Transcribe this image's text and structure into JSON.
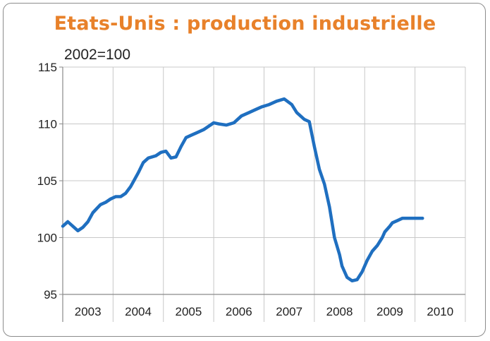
{
  "chart_data": {
    "type": "line",
    "title": "Etats-Unis : production industrielle",
    "subtitle": "2002=100",
    "xlabel": "",
    "ylabel": "",
    "ylim": [
      95,
      115
    ],
    "yticks": [
      95,
      100,
      105,
      110,
      115
    ],
    "xlim": [
      2002.95,
      2010.95
    ],
    "x_categories": [
      "2003",
      "2004",
      "2005",
      "2006",
      "2007",
      "2008",
      "2009",
      "2010"
    ],
    "grid": true,
    "legend": "none",
    "series": [
      {
        "color": "#1f6fc0",
        "x": [
          2002.95,
          2003.05,
          2003.15,
          2003.25,
          2003.35,
          2003.45,
          2003.55,
          2003.7,
          2003.8,
          2003.9,
          2004.0,
          2004.1,
          2004.2,
          2004.3,
          2004.45,
          2004.55,
          2004.65,
          2004.8,
          2004.9,
          2005.0,
          2005.1,
          2005.2,
          2005.3,
          2005.4,
          2005.5,
          2005.6,
          2005.65,
          2005.75,
          2005.85,
          2005.95,
          2006.05,
          2006.2,
          2006.35,
          2006.5,
          2006.65,
          2006.8,
          2006.9,
          2007.05,
          2007.2,
          2007.35,
          2007.5,
          2007.6,
          2007.75,
          2007.85,
          2007.95,
          2008.05,
          2008.15,
          2008.25,
          2008.35,
          2008.45,
          2008.5,
          2008.6,
          2008.7,
          2008.8,
          2008.9,
          2009.0,
          2009.1,
          2009.2,
          2009.3,
          2009.35,
          2009.45,
          2009.5,
          2009.6,
          2009.7,
          2009.8,
          2009.9,
          2010.0,
          2010.1
        ],
        "values": [
          101.0,
          101.4,
          101.0,
          100.6,
          100.9,
          101.4,
          102.2,
          102.9,
          103.1,
          103.4,
          103.6,
          103.6,
          103.9,
          104.5,
          105.7,
          106.6,
          107.0,
          107.2,
          107.5,
          107.6,
          107.0,
          107.1,
          108.0,
          108.8,
          109.0,
          109.2,
          109.3,
          109.5,
          109.8,
          110.1,
          110.0,
          109.9,
          110.1,
          110.7,
          111.0,
          111.3,
          111.5,
          111.7,
          112.0,
          112.2,
          111.7,
          111.0,
          110.4,
          110.2,
          108.0,
          106.0,
          104.7,
          102.7,
          100.0,
          98.5,
          97.5,
          96.5,
          96.2,
          96.3,
          97.0,
          98.0,
          98.8,
          99.3,
          100.0,
          100.5,
          101.0,
          101.3,
          101.5,
          101.7,
          101.7,
          101.7,
          101.7,
          101.7
        ]
      }
    ]
  }
}
